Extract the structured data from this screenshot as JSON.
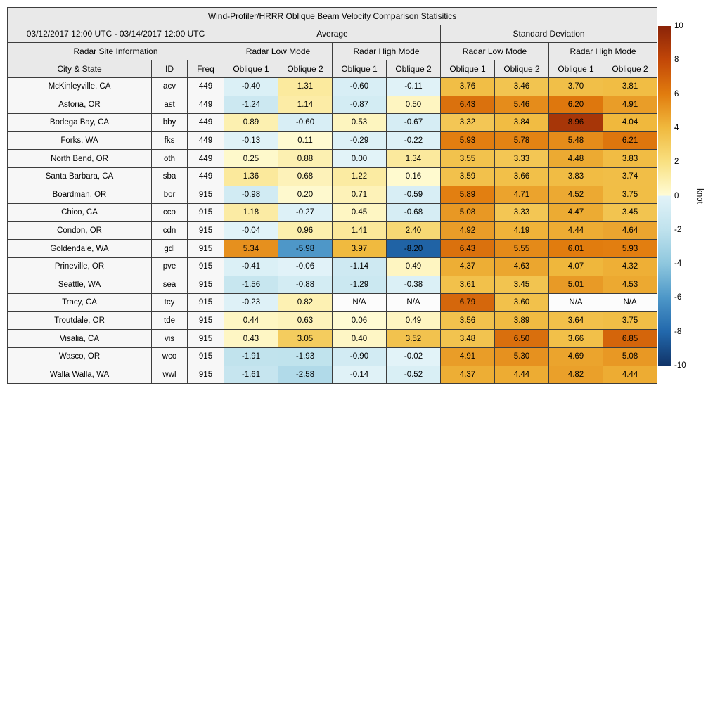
{
  "table": {
    "title": "Wind-Profiler/HRRR Oblique Beam Velocity Comparison Statisitics",
    "header": {
      "period": "03/12/2017 12:00 UTC - 03/14/2017 12:00 UTC",
      "average": "Average",
      "standard_deviation": "Standard Deviation",
      "site_info": "Radar Site Information",
      "low_mode": "Radar Low Mode",
      "high_mode": "Radar High Mode",
      "city": "City & State",
      "id": "ID",
      "freq": "Freq",
      "oblique1": "Oblique 1",
      "oblique2": "Oblique 2"
    },
    "colors": {
      "header_bg": "#e9e9e9",
      "label_bg": "#f7f7f7",
      "border": "#3d3d3d",
      "na_cell": "#fcfcfc"
    }
  },
  "colorbar": {
    "label": "knot",
    "min": -10,
    "max": 10,
    "ticks": [
      10,
      8,
      6,
      4,
      2,
      0,
      -2,
      -4,
      -6,
      -8,
      -10
    ],
    "colormap": {
      "neg": [
        [
          -10,
          "#113468"
        ],
        [
          -8,
          "#2268ac"
        ],
        [
          -6,
          "#4d97c8"
        ],
        [
          -4,
          "#8ec7de"
        ],
        [
          -2,
          "#bfe2ed"
        ],
        [
          0,
          "#e2f3f8"
        ]
      ],
      "pos": [
        [
          0,
          "#fffcd6"
        ],
        [
          2,
          "#f9e081"
        ],
        [
          4,
          "#f0b93e"
        ],
        [
          6,
          "#e17c0e"
        ],
        [
          8,
          "#c24708"
        ],
        [
          10,
          "#8a2308"
        ]
      ]
    }
  },
  "chart_data": {
    "type": "heatmap",
    "title": "Wind-Profiler/HRRR Oblique Beam Velocity Comparison Statisitics",
    "period": "03/12/2017 12:00 UTC - 03/14/2017 12:00 UTC",
    "value_unit": "knot",
    "value_range": [
      -10,
      10
    ],
    "columns": [
      "Average Radar Low Mode Oblique 1",
      "Average Radar Low Mode Oblique 2",
      "Average Radar High Mode Oblique 1",
      "Average Radar High Mode Oblique 2",
      "Standard Deviation Radar Low Mode Oblique 1",
      "Standard Deviation Radar Low Mode Oblique 2",
      "Standard Deviation Radar High Mode Oblique 1",
      "Standard Deviation Radar High Mode Oblique 2"
    ],
    "rows": [
      {
        "city": "McKinleyville, CA",
        "id": "acv",
        "freq": "449",
        "values": [
          "-0.40",
          "1.31",
          "-0.60",
          "-0.11",
          "3.76",
          "3.46",
          "3.70",
          "3.81"
        ]
      },
      {
        "city": "Astoria, OR",
        "id": "ast",
        "freq": "449",
        "values": [
          "-1.24",
          "1.14",
          "-0.87",
          "0.50",
          "6.43",
          "5.46",
          "6.20",
          "4.91"
        ]
      },
      {
        "city": "Bodega Bay, CA",
        "id": "bby",
        "freq": "449",
        "values": [
          "0.89",
          "-0.60",
          "0.53",
          "-0.67",
          "3.32",
          "3.84",
          "8.96",
          "4.04"
        ]
      },
      {
        "city": "Forks, WA",
        "id": "fks",
        "freq": "449",
        "values": [
          "-0.13",
          "0.11",
          "-0.29",
          "-0.22",
          "5.93",
          "5.78",
          "5.48",
          "6.21"
        ]
      },
      {
        "city": "North Bend, OR",
        "id": "oth",
        "freq": "449",
        "values": [
          "0.25",
          "0.88",
          "0.00",
          "1.34",
          "3.55",
          "3.33",
          "4.48",
          "3.83"
        ]
      },
      {
        "city": "Santa Barbara, CA",
        "id": "sba",
        "freq": "449",
        "values": [
          "1.36",
          "0.68",
          "1.22",
          "0.16",
          "3.59",
          "3.66",
          "3.83",
          "3.74"
        ]
      },
      {
        "city": "Boardman, OR",
        "id": "bor",
        "freq": "915",
        "values": [
          "-0.98",
          "0.20",
          "0.71",
          "-0.59",
          "5.89",
          "4.71",
          "4.52",
          "3.75"
        ]
      },
      {
        "city": "Chico, CA",
        "id": "cco",
        "freq": "915",
        "values": [
          "1.18",
          "-0.27",
          "0.45",
          "-0.68",
          "5.08",
          "3.33",
          "4.47",
          "3.45"
        ]
      },
      {
        "city": "Condon, OR",
        "id": "cdn",
        "freq": "915",
        "values": [
          "-0.04",
          "0.96",
          "1.41",
          "2.40",
          "4.92",
          "4.19",
          "4.44",
          "4.64"
        ]
      },
      {
        "city": "Goldendale, WA",
        "id": "gdl",
        "freq": "915",
        "values": [
          "5.34",
          "-5.98",
          "3.97",
          "-8.20",
          "6.43",
          "5.55",
          "6.01",
          "5.93"
        ]
      },
      {
        "city": "Prineville, OR",
        "id": "pve",
        "freq": "915",
        "values": [
          "-0.41",
          "-0.06",
          "-1.14",
          "0.49",
          "4.37",
          "4.63",
          "4.07",
          "4.32"
        ]
      },
      {
        "city": "Seattle, WA",
        "id": "sea",
        "freq": "915",
        "values": [
          "-1.56",
          "-0.88",
          "-1.29",
          "-0.38",
          "3.61",
          "3.45",
          "5.01",
          "4.53"
        ]
      },
      {
        "city": "Tracy, CA",
        "id": "tcy",
        "freq": "915",
        "values": [
          "-0.23",
          "0.82",
          "N/A",
          "N/A",
          "6.79",
          "3.60",
          "N/A",
          "N/A"
        ]
      },
      {
        "city": "Troutdale, OR",
        "id": "tde",
        "freq": "915",
        "values": [
          "0.44",
          "0.63",
          "0.06",
          "0.49",
          "3.56",
          "3.89",
          "3.64",
          "3.75"
        ]
      },
      {
        "city": "Visalia, CA",
        "id": "vis",
        "freq": "915",
        "values": [
          "0.43",
          "3.05",
          "0.40",
          "3.52",
          "3.48",
          "6.50",
          "3.66",
          "6.85"
        ]
      },
      {
        "city": "Wasco, OR",
        "id": "wco",
        "freq": "915",
        "values": [
          "-1.91",
          "-1.93",
          "-0.90",
          "-0.02",
          "4.91",
          "5.30",
          "4.69",
          "5.08"
        ]
      },
      {
        "city": "Walla Walla, WA",
        "id": "wwl",
        "freq": "915",
        "values": [
          "-1.61",
          "-2.58",
          "-0.14",
          "-0.52",
          "4.37",
          "4.44",
          "4.82",
          "4.44"
        ]
      }
    ]
  }
}
